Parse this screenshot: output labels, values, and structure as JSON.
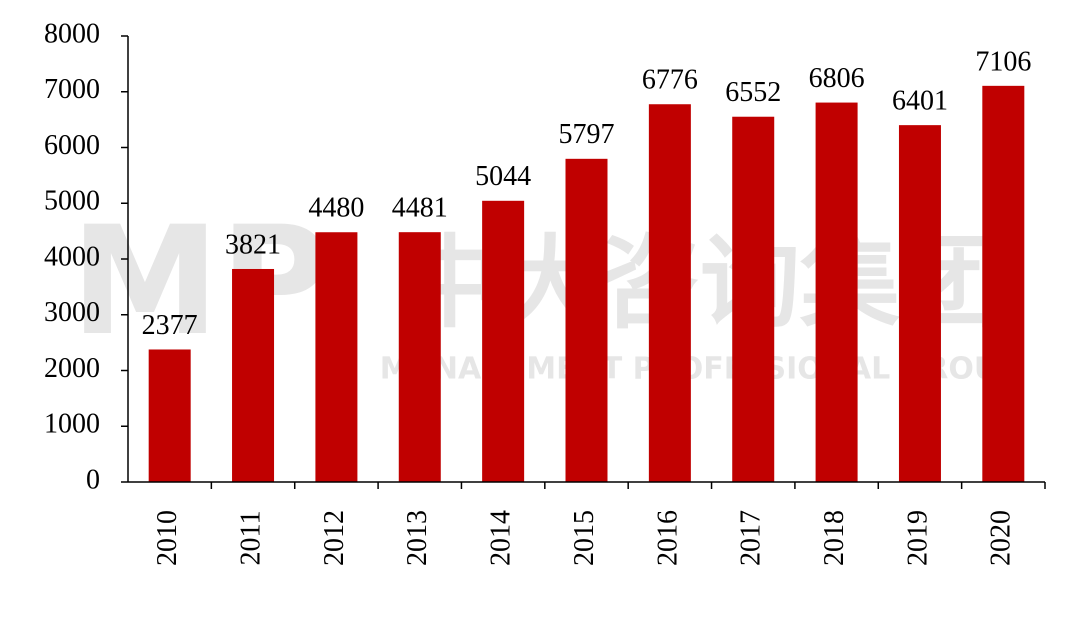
{
  "chart_data": {
    "type": "bar",
    "categories": [
      "2010",
      "2011",
      "2012",
      "2013",
      "2014",
      "2015",
      "2016",
      "2017",
      "2018",
      "2019",
      "2020"
    ],
    "values": [
      2377,
      3821,
      4480,
      4481,
      5044,
      5797,
      6776,
      6552,
      6806,
      6401,
      7106
    ],
    "color": "#c00000",
    "ylim": [
      0,
      8000
    ],
    "yticks": [
      0,
      1000,
      2000,
      3000,
      4000,
      5000,
      6000,
      7000,
      8000
    ],
    "grid": false,
    "watermark": {
      "logo": "MP",
      "name": "中大咨询集团",
      "subtitle": "MANAGEMENT PROFESSIONAL GROUP"
    }
  }
}
